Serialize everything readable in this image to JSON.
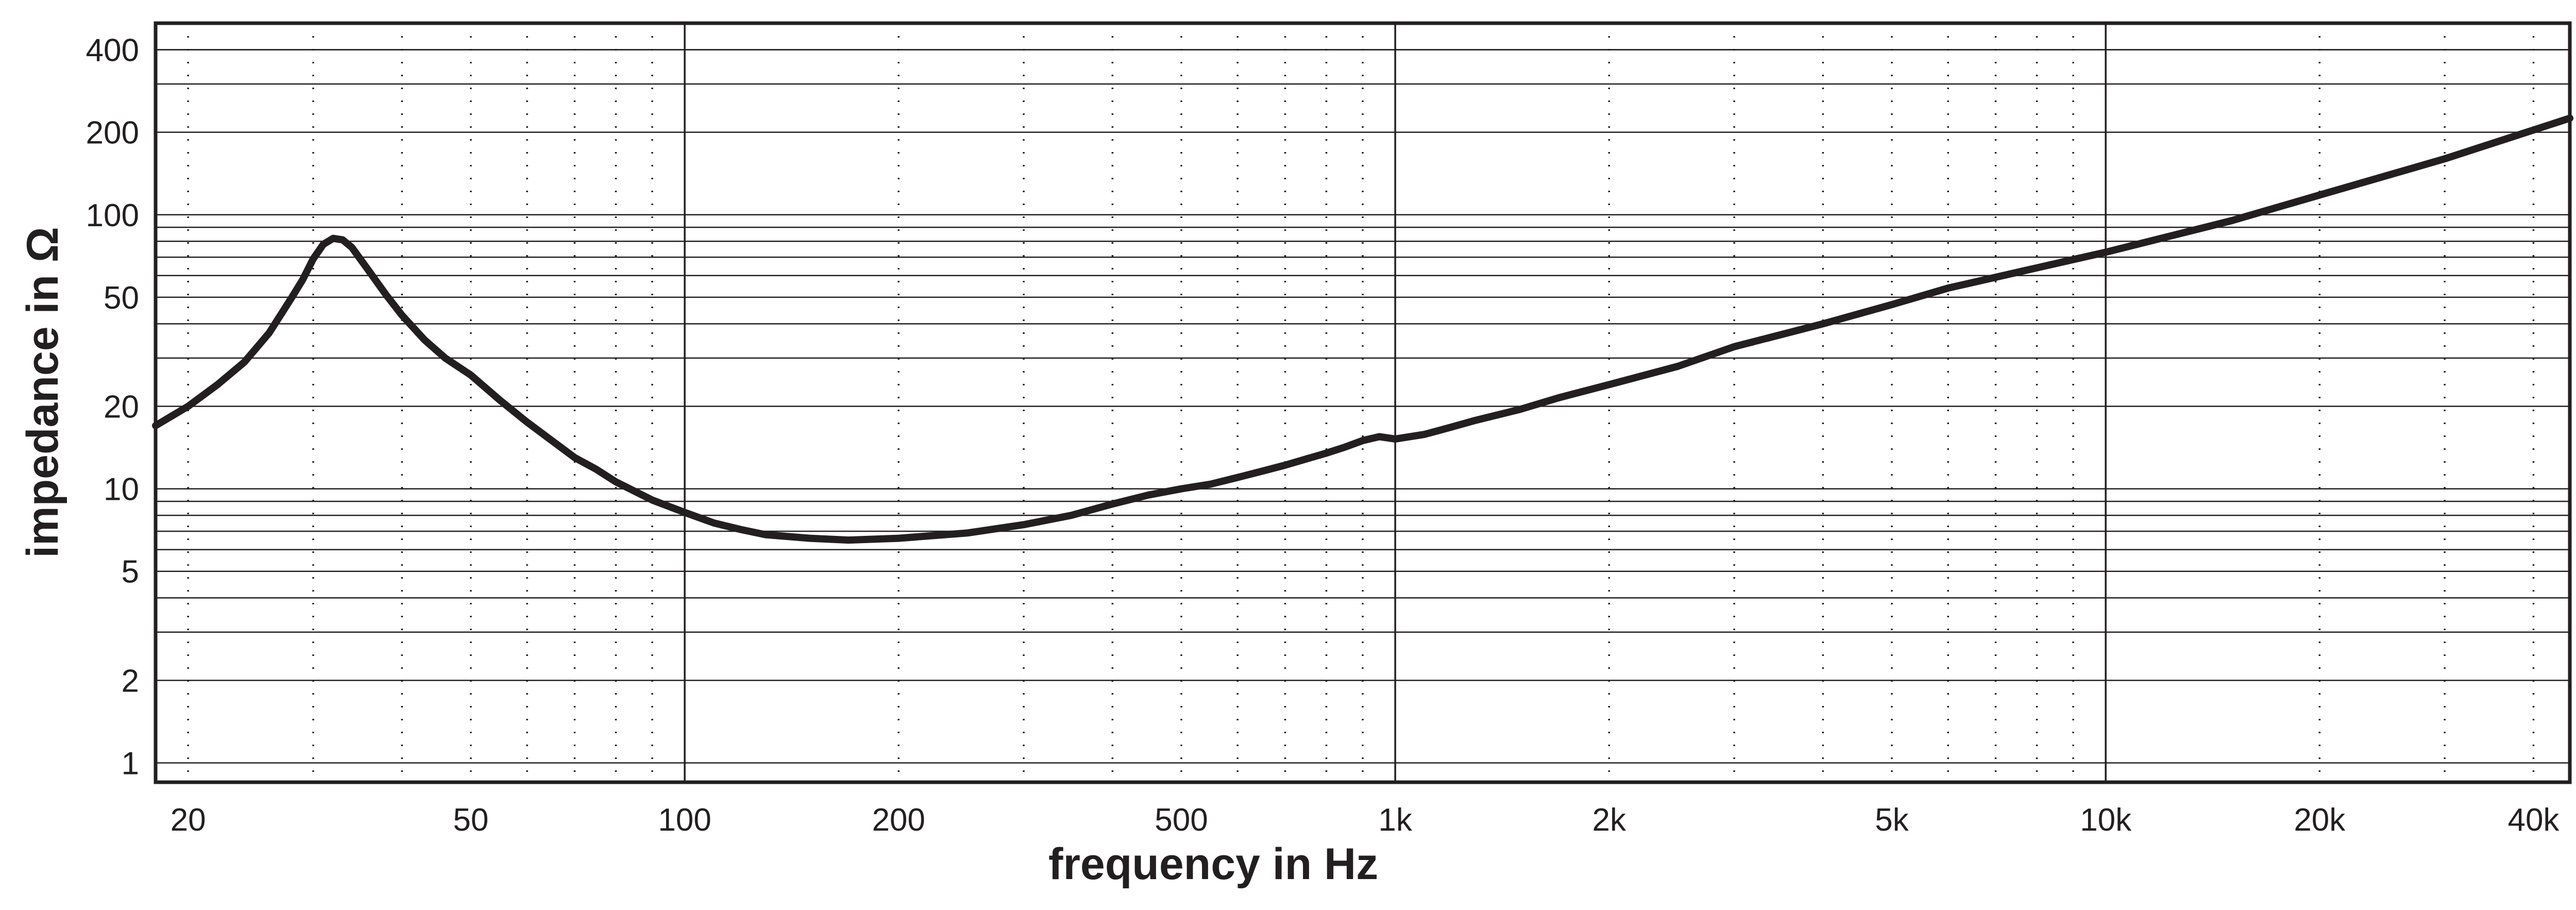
{
  "chart_data": {
    "type": "line",
    "title": "",
    "xlabel": "frequency in Hz",
    "ylabel": "impedance in Ω",
    "x_scale": "log",
    "y_scale": "log",
    "xlim": [
      18,
      45000
    ],
    "ylim": [
      0.85,
      500
    ],
    "grid": true,
    "x_ticks": [
      {
        "value": 20,
        "label": "20"
      },
      {
        "value": 50,
        "label": "50"
      },
      {
        "value": 100,
        "label": "100"
      },
      {
        "value": 200,
        "label": "200"
      },
      {
        "value": 500,
        "label": "500"
      },
      {
        "value": 1000,
        "label": "1k"
      },
      {
        "value": 2000,
        "label": "2k"
      },
      {
        "value": 5000,
        "label": "5k"
      },
      {
        "value": 10000,
        "label": "10k"
      },
      {
        "value": 20000,
        "label": "20k"
      },
      {
        "value": 40000,
        "label": "40k"
      }
    ],
    "y_ticks": [
      {
        "value": 1,
        "label": "1"
      },
      {
        "value": 2,
        "label": "2"
      },
      {
        "value": 5,
        "label": "5"
      },
      {
        "value": 10,
        "label": "10"
      },
      {
        "value": 20,
        "label": "20"
      },
      {
        "value": 50,
        "label": "50"
      },
      {
        "value": 100,
        "label": "100"
      },
      {
        "value": 200,
        "label": "200"
      },
      {
        "value": 400,
        "label": "400"
      }
    ],
    "series": [
      {
        "color": "#231f20",
        "x": [
          18,
          20,
          22,
          24,
          26,
          28,
          29,
          30,
          31,
          32,
          33,
          34,
          36,
          38,
          40,
          43,
          46,
          50,
          55,
          60,
          65,
          70,
          75,
          80,
          90,
          100,
          110,
          120,
          130,
          150,
          170,
          200,
          250,
          300,
          350,
          400,
          450,
          500,
          550,
          600,
          650,
          700,
          800,
          850,
          900,
          950,
          1000,
          1100,
          1200,
          1300,
          1500,
          1700,
          2000,
          2500,
          3000,
          4000,
          5000,
          6000,
          8000,
          10000,
          15000,
          20000,
          30000,
          45000
        ],
        "y": [
          17,
          20,
          24,
          29,
          37,
          50,
          58,
          69,
          78,
          82,
          81,
          76,
          62,
          51,
          43,
          35,
          30,
          26,
          21,
          17.5,
          15,
          13,
          11.8,
          10.6,
          9.1,
          8.2,
          7.5,
          7.1,
          6.8,
          6.6,
          6.5,
          6.6,
          6.9,
          7.4,
          8.0,
          8.8,
          9.5,
          10.0,
          10.4,
          11.0,
          11.6,
          12.2,
          13.5,
          14.2,
          15.0,
          15.5,
          15.2,
          15.8,
          16.8,
          17.8,
          19.5,
          21.5,
          24,
          28,
          33,
          40,
          47,
          54,
          64,
          73,
          95,
          118,
          160,
          225
        ]
      }
    ]
  }
}
